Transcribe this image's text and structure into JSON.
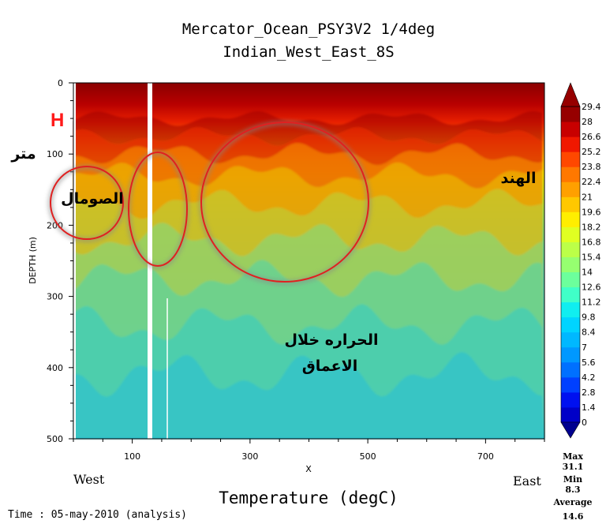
{
  "chart_data": {
    "type": "heatmap",
    "title": "Mercator_Ocean_PSY3V2 1/4deg",
    "subtitle": "Indian_West_East_8S",
    "xlabel": "X",
    "ylabel": "DEPTH (m)",
    "xlim": [
      0,
      800
    ],
    "ylim": [
      500,
      0
    ],
    "x_ticks": [
      100,
      300,
      500,
      700
    ],
    "y_ticks": [
      0,
      100,
      200,
      300,
      400,
      500
    ],
    "x_tick_labels": [
      "100",
      "300",
      "500",
      "700"
    ],
    "y_tick_labels": [
      "0",
      "100",
      "200",
      "300",
      "400",
      "500"
    ],
    "west_label": "West",
    "east_label": "East",
    "variable_label": "Temperature (degC)",
    "time_label": "Time : 05-may-2010 (analysis)",
    "colorbar": {
      "levels": [
        0,
        1.4,
        2.8,
        4.2,
        5.6,
        7,
        8.4,
        9.8,
        11.2,
        12.6,
        14,
        15.4,
        16.8,
        18.2,
        19.6,
        21,
        22.4,
        23.8,
        25.2,
        26.6,
        28,
        29.4
      ],
      "labels": [
        "0",
        "1.4",
        "2.8",
        "4.2",
        "5.6",
        "7",
        "8.4",
        "9.8",
        "11.2",
        "12.6",
        "14",
        "15.4",
        "16.8",
        "18.2",
        "19.6",
        "21",
        "22.4",
        "23.8",
        "25.2",
        "26.6",
        "28",
        "29.4"
      ],
      "colors": [
        "#00008f",
        "#0000c8",
        "#0010f0",
        "#0040ff",
        "#0070ff",
        "#0098ff",
        "#00b8ff",
        "#00d4ff",
        "#10eef0",
        "#40ffc8",
        "#6cff9c",
        "#96ff70",
        "#bcff48",
        "#e0ff22",
        "#ffee00",
        "#ffc800",
        "#ffa000",
        "#ff7800",
        "#ff4800",
        "#f01800",
        "#c80000",
        "#960000"
      ]
    },
    "stats": {
      "max_label": "Max",
      "max_value": "31.1",
      "min_label": "Min",
      "min_value": "8.3",
      "avg_label": "Average",
      "avg_value": "14.6"
    },
    "annotations": {
      "h_label": "H",
      "meter_label": "متر",
      "somalia_label": "الصومال",
      "india_label": "الهند",
      "depth_temp_line1": "الحراره خلال",
      "depth_temp_line2": "الاعماق"
    },
    "circle_color": "#e02020"
  }
}
